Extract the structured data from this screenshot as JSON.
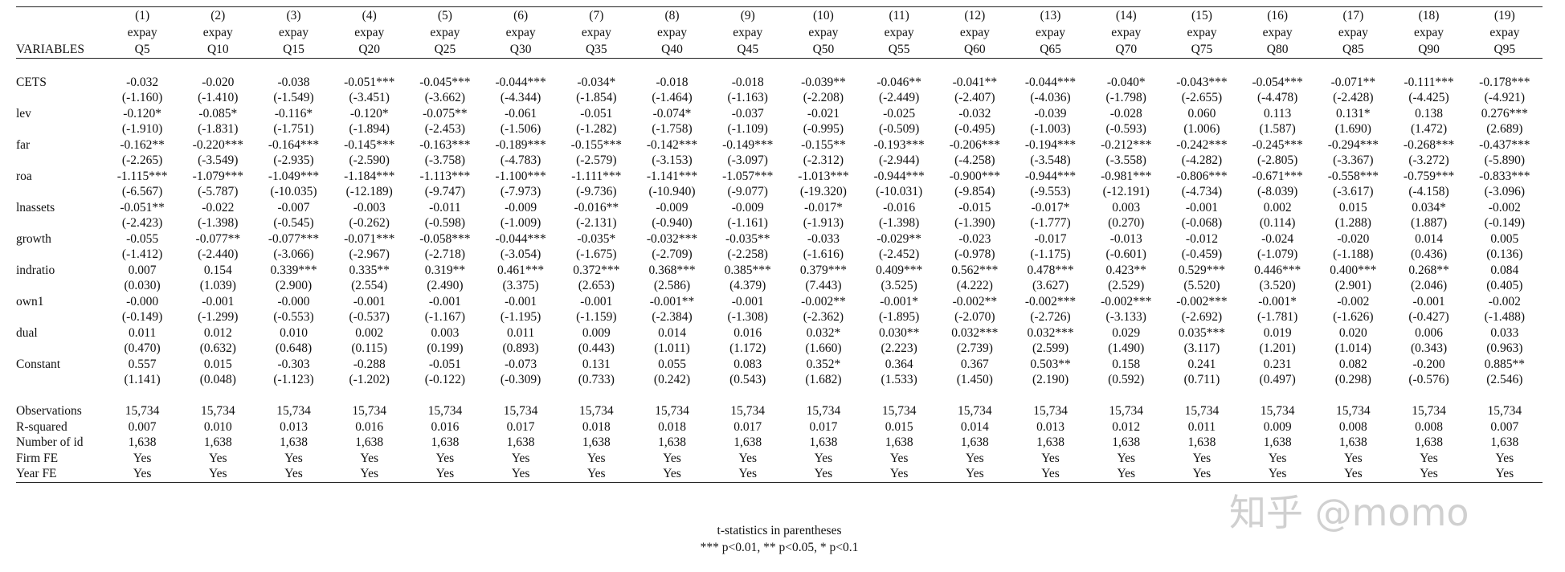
{
  "header": {
    "variables_label": "VARIABLES",
    "numbers": [
      "(1)",
      "(2)",
      "(3)",
      "(4)",
      "(5)",
      "(6)",
      "(7)",
      "(8)",
      "(9)",
      "(10)",
      "(11)",
      "(12)",
      "(13)",
      "(14)",
      "(15)",
      "(16)",
      "(17)",
      "(18)",
      "(19)"
    ],
    "depvar": [
      "expay",
      "expay",
      "expay",
      "expay",
      "expay",
      "expay",
      "expay",
      "expay",
      "expay",
      "expay",
      "expay",
      "expay",
      "expay",
      "expay",
      "expay",
      "expay",
      "expay",
      "expay",
      "expay"
    ],
    "quantiles": [
      "Q5",
      "Q10",
      "Q15",
      "Q20",
      "Q25",
      "Q30",
      "Q35",
      "Q40",
      "Q45",
      "Q50",
      "Q55",
      "Q60",
      "Q65",
      "Q70",
      "Q75",
      "Q80",
      "Q85",
      "Q90",
      "Q95"
    ]
  },
  "rows": [
    {
      "label": "CETS",
      "coef": [
        "-0.032",
        "-0.020",
        "-0.038",
        "-0.051***",
        "-0.045***",
        "-0.044***",
        "-0.034*",
        "-0.018",
        "-0.018",
        "-0.039**",
        "-0.046**",
        "-0.041**",
        "-0.044***",
        "-0.040*",
        "-0.043***",
        "-0.054***",
        "-0.071**",
        "-0.111***",
        "-0.178***"
      ],
      "t": [
        "(-1.160)",
        "(-1.410)",
        "(-1.549)",
        "(-3.451)",
        "(-3.662)",
        "(-4.344)",
        "(-1.854)",
        "(-1.464)",
        "(-1.163)",
        "(-2.208)",
        "(-2.449)",
        "(-2.407)",
        "(-4.036)",
        "(-1.798)",
        "(-2.655)",
        "(-4.478)",
        "(-2.428)",
        "(-4.425)",
        "(-4.921)"
      ]
    },
    {
      "label": "lev",
      "coef": [
        "-0.120*",
        "-0.085*",
        "-0.116*",
        "-0.120*",
        "-0.075**",
        "-0.061",
        "-0.051",
        "-0.074*",
        "-0.037",
        "-0.021",
        "-0.025",
        "-0.032",
        "-0.039",
        "-0.028",
        "0.060",
        "0.113",
        "0.131*",
        "0.138",
        "0.276***"
      ],
      "t": [
        "(-1.910)",
        "(-1.831)",
        "(-1.751)",
        "(-1.894)",
        "(-2.453)",
        "(-1.506)",
        "(-1.282)",
        "(-1.758)",
        "(-1.109)",
        "(-0.995)",
        "(-0.509)",
        "(-0.495)",
        "(-1.003)",
        "(-0.593)",
        "(1.006)",
        "(1.587)",
        "(1.690)",
        "(1.472)",
        "(2.689)"
      ]
    },
    {
      "label": "far",
      "coef": [
        "-0.162**",
        "-0.220***",
        "-0.164***",
        "-0.145***",
        "-0.163***",
        "-0.189***",
        "-0.155***",
        "-0.142***",
        "-0.149***",
        "-0.155**",
        "-0.193***",
        "-0.206***",
        "-0.194***",
        "-0.212***",
        "-0.242***",
        "-0.245***",
        "-0.294***",
        "-0.268***",
        "-0.437***"
      ],
      "t": [
        "(-2.265)",
        "(-3.549)",
        "(-2.935)",
        "(-2.590)",
        "(-3.758)",
        "(-4.783)",
        "(-2.579)",
        "(-3.153)",
        "(-3.097)",
        "(-2.312)",
        "(-2.944)",
        "(-4.258)",
        "(-3.548)",
        "(-3.558)",
        "(-4.282)",
        "(-2.805)",
        "(-3.367)",
        "(-3.272)",
        "(-5.890)"
      ]
    },
    {
      "label": "roa",
      "coef": [
        "-1.115***",
        "-1.079***",
        "-1.049***",
        "-1.184***",
        "-1.113***",
        "-1.100***",
        "-1.111***",
        "-1.141***",
        "-1.057***",
        "-1.013***",
        "-0.944***",
        "-0.900***",
        "-0.944***",
        "-0.981***",
        "-0.806***",
        "-0.671***",
        "-0.558***",
        "-0.759***",
        "-0.833***"
      ],
      "t": [
        "(-6.567)",
        "(-5.787)",
        "(-10.035)",
        "(-12.189)",
        "(-9.747)",
        "(-7.973)",
        "(-9.736)",
        "(-10.940)",
        "(-9.077)",
        "(-19.320)",
        "(-10.031)",
        "(-9.854)",
        "(-9.553)",
        "(-12.191)",
        "(-4.734)",
        "(-8.039)",
        "(-3.617)",
        "(-4.158)",
        "(-3.096)"
      ]
    },
    {
      "label": "lnassets",
      "coef": [
        "-0.051**",
        "-0.022",
        "-0.007",
        "-0.003",
        "-0.011",
        "-0.009",
        "-0.016**",
        "-0.009",
        "-0.009",
        "-0.017*",
        "-0.016",
        "-0.015",
        "-0.017*",
        "0.003",
        "-0.001",
        "0.002",
        "0.015",
        "0.034*",
        "-0.002"
      ],
      "t": [
        "(-2.423)",
        "(-1.398)",
        "(-0.545)",
        "(-0.262)",
        "(-0.598)",
        "(-1.009)",
        "(-2.131)",
        "(-0.940)",
        "(-1.161)",
        "(-1.913)",
        "(-1.398)",
        "(-1.390)",
        "(-1.777)",
        "(0.270)",
        "(-0.068)",
        "(0.114)",
        "(1.288)",
        "(1.887)",
        "(-0.149)"
      ]
    },
    {
      "label": "growth",
      "coef": [
        "-0.055",
        "-0.077**",
        "-0.077***",
        "-0.071***",
        "-0.058***",
        "-0.044***",
        "-0.035*",
        "-0.032***",
        "-0.035**",
        "-0.033",
        "-0.029**",
        "-0.023",
        "-0.017",
        "-0.013",
        "-0.012",
        "-0.024",
        "-0.020",
        "0.014",
        "0.005"
      ],
      "t": [
        "(-1.412)",
        "(-2.440)",
        "(-3.066)",
        "(-2.967)",
        "(-2.718)",
        "(-3.054)",
        "(-1.675)",
        "(-2.709)",
        "(-2.258)",
        "(-1.616)",
        "(-2.452)",
        "(-0.978)",
        "(-1.175)",
        "(-0.601)",
        "(-0.459)",
        "(-1.079)",
        "(-1.188)",
        "(0.436)",
        "(0.136)"
      ]
    },
    {
      "label": "indratio",
      "coef": [
        "0.007",
        "0.154",
        "0.339***",
        "0.335**",
        "0.319**",
        "0.461***",
        "0.372***",
        "0.368***",
        "0.385***",
        "0.379***",
        "0.409***",
        "0.562***",
        "0.478***",
        "0.423**",
        "0.529***",
        "0.446***",
        "0.400***",
        "0.268**",
        "0.084"
      ],
      "t": [
        "(0.030)",
        "(1.039)",
        "(2.900)",
        "(2.554)",
        "(2.490)",
        "(3.375)",
        "(2.653)",
        "(2.586)",
        "(4.379)",
        "(7.443)",
        "(3.525)",
        "(4.222)",
        "(3.627)",
        "(2.529)",
        "(5.520)",
        "(3.520)",
        "(2.901)",
        "(2.046)",
        "(0.405)"
      ]
    },
    {
      "label": "own1",
      "coef": [
        "-0.000",
        "-0.001",
        "-0.000",
        "-0.001",
        "-0.001",
        "-0.001",
        "-0.001",
        "-0.001**",
        "-0.001",
        "-0.002**",
        "-0.001*",
        "-0.002**",
        "-0.002***",
        "-0.002***",
        "-0.002***",
        "-0.001*",
        "-0.002",
        "-0.001",
        "-0.002"
      ],
      "t": [
        "(-0.149)",
        "(-1.299)",
        "(-0.553)",
        "(-0.537)",
        "(-1.167)",
        "(-1.195)",
        "(-1.159)",
        "(-2.384)",
        "(-1.308)",
        "(-2.362)",
        "(-1.895)",
        "(-2.070)",
        "(-2.726)",
        "(-3.133)",
        "(-2.692)",
        "(-1.781)",
        "(-1.626)",
        "(-0.427)",
        "(-1.488)"
      ]
    },
    {
      "label": "dual",
      "coef": [
        "0.011",
        "0.012",
        "0.010",
        "0.002",
        "0.003",
        "0.011",
        "0.009",
        "0.014",
        "0.016",
        "0.032*",
        "0.030**",
        "0.032***",
        "0.032***",
        "0.029",
        "0.035***",
        "0.019",
        "0.020",
        "0.006",
        "0.033"
      ],
      "t": [
        "(0.470)",
        "(0.632)",
        "(0.648)",
        "(0.115)",
        "(0.199)",
        "(0.893)",
        "(0.443)",
        "(1.011)",
        "(1.172)",
        "(1.660)",
        "(2.223)",
        "(2.739)",
        "(2.599)",
        "(1.490)",
        "(3.117)",
        "(1.201)",
        "(1.014)",
        "(0.343)",
        "(0.963)"
      ]
    },
    {
      "label": "Constant",
      "coef": [
        "0.557",
        "0.015",
        "-0.303",
        "-0.288",
        "-0.051",
        "-0.073",
        "0.131",
        "0.055",
        "0.083",
        "0.352*",
        "0.364",
        "0.367",
        "0.503**",
        "0.158",
        "0.241",
        "0.231",
        "0.082",
        "-0.200",
        "0.885**"
      ],
      "t": [
        "(1.141)",
        "(0.048)",
        "(-1.123)",
        "(-1.202)",
        "(-0.122)",
        "(-0.309)",
        "(0.733)",
        "(0.242)",
        "(0.543)",
        "(1.682)",
        "(1.533)",
        "(1.450)",
        "(2.190)",
        "(0.592)",
        "(0.711)",
        "(0.497)",
        "(0.298)",
        "(-0.576)",
        "(2.546)"
      ]
    }
  ],
  "stats": [
    {
      "label": "Observations",
      "values": [
        "15,734",
        "15,734",
        "15,734",
        "15,734",
        "15,734",
        "15,734",
        "15,734",
        "15,734",
        "15,734",
        "15,734",
        "15,734",
        "15,734",
        "15,734",
        "15,734",
        "15,734",
        "15,734",
        "15,734",
        "15,734",
        "15,734"
      ]
    },
    {
      "label": "R-squared",
      "values": [
        "0.007",
        "0.010",
        "0.013",
        "0.016",
        "0.016",
        "0.017",
        "0.018",
        "0.018",
        "0.017",
        "0.017",
        "0.015",
        "0.014",
        "0.013",
        "0.012",
        "0.011",
        "0.009",
        "0.008",
        "0.008",
        "0.007"
      ]
    },
    {
      "label": "Number of id",
      "values": [
        "1,638",
        "1,638",
        "1,638",
        "1,638",
        "1,638",
        "1,638",
        "1,638",
        "1,638",
        "1,638",
        "1,638",
        "1,638",
        "1,638",
        "1,638",
        "1,638",
        "1,638",
        "1,638",
        "1,638",
        "1,638",
        "1,638"
      ]
    },
    {
      "label": "Firm FE",
      "values": [
        "Yes",
        "Yes",
        "Yes",
        "Yes",
        "Yes",
        "Yes",
        "Yes",
        "Yes",
        "Yes",
        "Yes",
        "Yes",
        "Yes",
        "Yes",
        "Yes",
        "Yes",
        "Yes",
        "Yes",
        "Yes",
        "Yes"
      ]
    },
    {
      "label": "Year FE",
      "values": [
        "Yes",
        "Yes",
        "Yes",
        "Yes",
        "Yes",
        "Yes",
        "Yes",
        "Yes",
        "Yes",
        "Yes",
        "Yes",
        "Yes",
        "Yes",
        "Yes",
        "Yes",
        "Yes",
        "Yes",
        "Yes",
        "Yes"
      ]
    }
  ],
  "notes": [
    "t-statistics in parentheses",
    "*** p<0.01, ** p<0.05, * p<0.1"
  ],
  "watermark": "知乎 @momo"
}
